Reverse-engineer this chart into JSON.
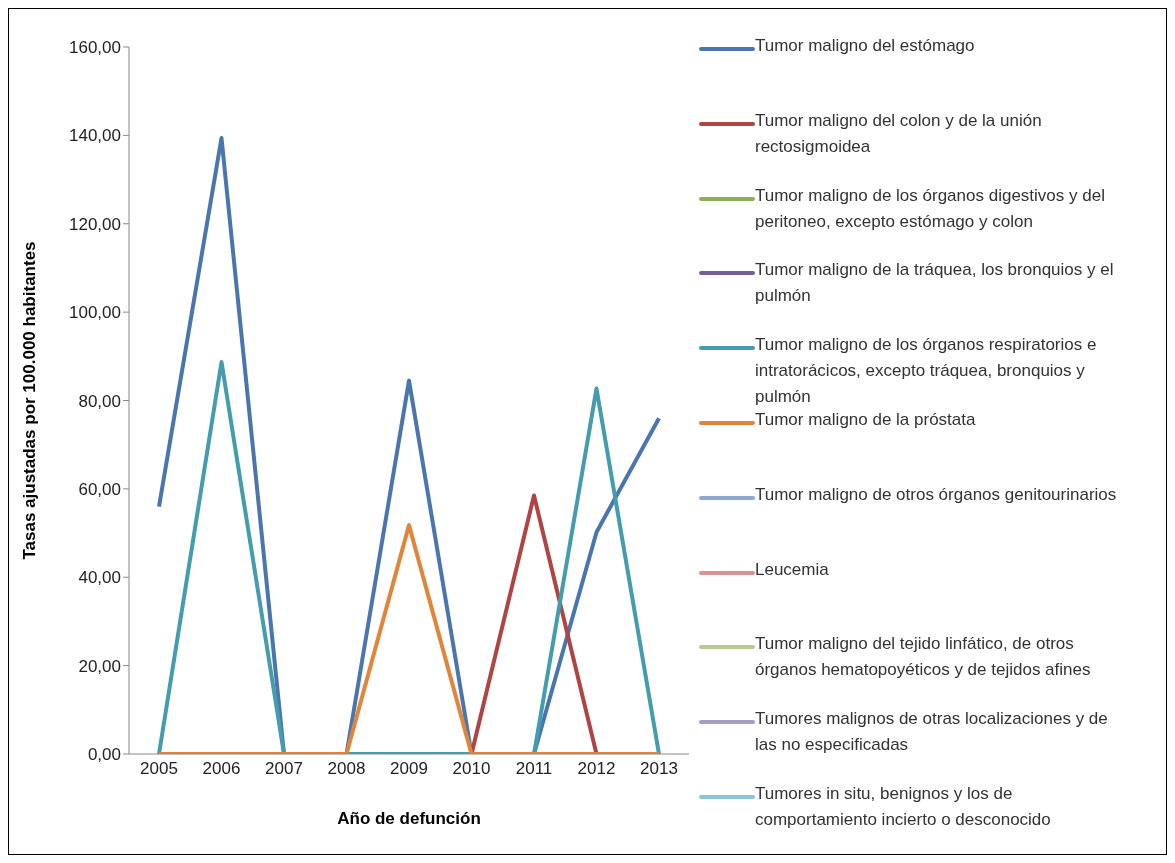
{
  "chart_data": {
    "type": "line",
    "xlabel": "Año de defunción",
    "ylabel": "Tasas ajustadas por 100.000 habitantes",
    "categories": [
      "2005",
      "2006",
      "2007",
      "2008",
      "2009",
      "2010",
      "2011",
      "2012",
      "2013"
    ],
    "ylim": [
      0,
      160
    ],
    "yticks": [
      {
        "value": 0,
        "label": "0,00"
      },
      {
        "value": 20,
        "label": "20,00"
      },
      {
        "value": 40,
        "label": "40,00"
      },
      {
        "value": 60,
        "label": "60,00"
      },
      {
        "value": 80,
        "label": "80,00"
      },
      {
        "value": 100,
        "label": "100,00"
      },
      {
        "value": 120,
        "label": "120,00"
      },
      {
        "value": 140,
        "label": "140,00"
      },
      {
        "value": 160,
        "label": "160,00"
      }
    ],
    "legend": "right",
    "marker": "none",
    "line_style": "solid",
    "series": [
      {
        "name": "Tumor maligno del estómago",
        "color": "#4a76b0",
        "values": [
          56,
          139.4,
          0,
          0,
          84.5,
          0,
          0,
          50.2,
          76
        ]
      },
      {
        "name": "Tumor maligno del colon y de la unión rectosigmoidea",
        "color": "#b04442",
        "values": [
          0,
          0,
          0,
          0,
          0,
          0,
          58.5,
          0,
          0
        ]
      },
      {
        "name": "Tumor maligno de los órganos digestivos y del peritoneo, excepto estómago y colon",
        "color": "#8fb050",
        "values": [
          null,
          null,
          null,
          null,
          null,
          null,
          null,
          null,
          null
        ]
      },
      {
        "name": "Tumor maligno de la tráquea, los bronquios y el pulmón",
        "color": "#7a5c9c",
        "values": [
          null,
          null,
          null,
          null,
          null,
          null,
          null,
          null,
          null
        ]
      },
      {
        "name": "Tumor maligno de los órganos respiratorios e intratorácicos, excepto tráquea, bronquios y pulmón",
        "color": "#439dae",
        "values": [
          0,
          88.7,
          0,
          0,
          0,
          0,
          0,
          82.7,
          0
        ]
      },
      {
        "name": "Tumor maligno de la próstata",
        "color": "#e0853a",
        "values": [
          0,
          0,
          0,
          0,
          51.8,
          0,
          0,
          0,
          0
        ]
      },
      {
        "name": "Tumor maligno de otros órganos genitourinarios",
        "color": "#8ea6d2",
        "values": [
          null,
          null,
          null,
          null,
          null,
          null,
          null,
          null,
          null
        ]
      },
      {
        "name": "Leucemia",
        "color": "#d69593",
        "values": [
          null,
          null,
          null,
          null,
          null,
          null,
          null,
          null,
          null
        ]
      },
      {
        "name": "Tumor maligno del tejido linfático, de otros órganos hematopoyéticos y de tejidos afines",
        "color": "#b6ca91",
        "values": [
          null,
          null,
          null,
          null,
          null,
          null,
          null,
          null,
          null
        ]
      },
      {
        "name": "Tumores malignos de otras localizaciones y de las no especificadas",
        "color": "#a89bbf",
        "values": [
          null,
          null,
          null,
          null,
          null,
          null,
          null,
          null,
          null
        ]
      },
      {
        "name": "Tumores in situ, benignos y los de comportamiento incierto o desconocido",
        "color": "#8cc3d6",
        "values": [
          null,
          null,
          null,
          null,
          null,
          null,
          null,
          null,
          null
        ]
      }
    ]
  }
}
